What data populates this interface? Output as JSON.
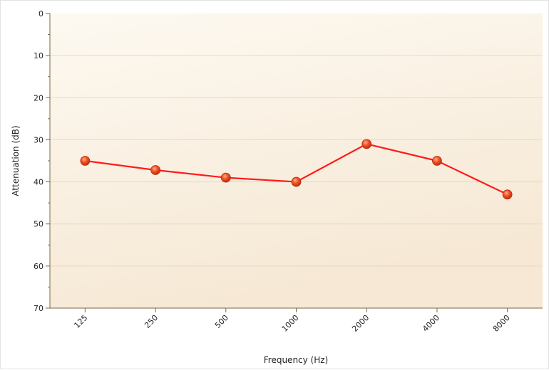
{
  "chart_data": {
    "type": "line",
    "title": "",
    "xlabel": "Frequency (Hz)",
    "ylabel": "Attenuation (dB)",
    "categories": [
      "125",
      "250",
      "500",
      "1000",
      "2000",
      "4000",
      "8000"
    ],
    "series": [
      {
        "values": [
          35,
          37.2,
          39,
          40,
          31,
          35,
          43
        ],
        "color": "#ff1a1a"
      }
    ],
    "y_ticks": [
      "0",
      "10",
      "20",
      "30",
      "40",
      "50",
      "60",
      "70"
    ],
    "ylim": [
      0,
      70
    ],
    "y_inverted": true,
    "grid": "horizontal",
    "legend": "none",
    "colors": {
      "plot_background_top": "#fdf9f1",
      "plot_background_bottom": "#f6e8d4",
      "grid": "#e6dac4",
      "axis": "#7a6a44",
      "marker": "#e8461e"
    }
  }
}
